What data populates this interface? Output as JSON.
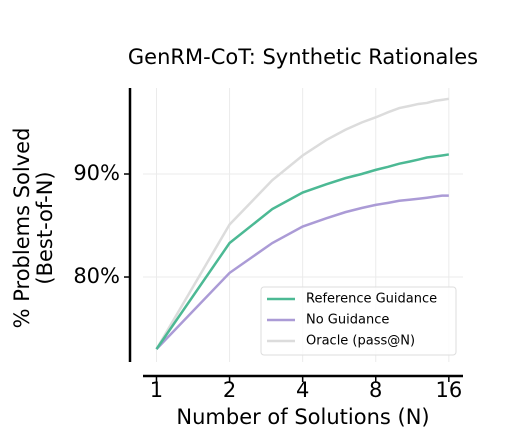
{
  "chart_data": {
    "type": "line",
    "title": "GenRM-CoT: Synthetic Rationales",
    "xlabel": "Number of Solutions (N)",
    "ylabel": [
      "% Problems Solved",
      "(Best-of-N)"
    ],
    "x": [
      1,
      2,
      3,
      4,
      5,
      6,
      7,
      8,
      9,
      10,
      11,
      12,
      13,
      14,
      15,
      16
    ],
    "xscale": "log2",
    "xlim": [
      0.88,
      18.3
    ],
    "xticks": [
      1,
      2,
      4,
      8,
      16
    ],
    "ylim": [
      71.75,
      98.35
    ],
    "yticks": [
      {
        "value": 80,
        "label": "80%"
      },
      {
        "value": 90,
        "label": "90%"
      }
    ],
    "grid": true,
    "legend": "lower right",
    "series": [
      {
        "name": "Reference Guidance",
        "color": "#4cb994",
        "values": [
          73.0,
          83.3,
          86.6,
          88.2,
          89.0,
          89.6,
          90.0,
          90.4,
          90.7,
          91.0,
          91.2,
          91.4,
          91.6,
          91.7,
          91.8,
          91.9
        ]
      },
      {
        "name": "No Guidance",
        "color": "#ab9bd6",
        "values": [
          73.0,
          80.4,
          83.3,
          84.9,
          85.7,
          86.3,
          86.7,
          87.0,
          87.2,
          87.4,
          87.5,
          87.6,
          87.7,
          87.8,
          87.9,
          87.9
        ]
      },
      {
        "name": "Oracle (pass@N)",
        "color": "#dcdcdc",
        "values": [
          73.0,
          85.1,
          89.4,
          91.8,
          93.3,
          94.3,
          95.0,
          95.5,
          96.0,
          96.4,
          96.6,
          96.8,
          96.9,
          97.1,
          97.2,
          97.3
        ]
      }
    ]
  }
}
